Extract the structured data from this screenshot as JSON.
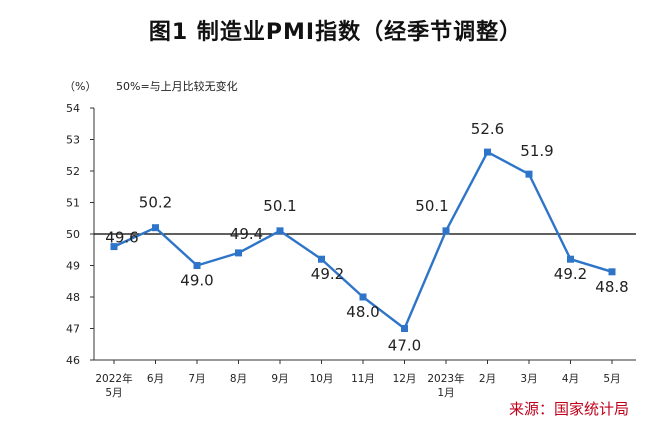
{
  "chart_data": {
    "type": "line",
    "title": "图1 制造业PMI指数（经季节调整）",
    "ylabel": "（%）",
    "reference_note": "50%=与上月比较无变化",
    "ylim": [
      46,
      54
    ],
    "yticks": [
      46,
      47,
      48,
      49,
      50,
      51,
      52,
      53,
      54
    ],
    "reference_line": 50,
    "categories": [
      [
        "2022年",
        "5月"
      ],
      [
        "6月"
      ],
      [
        "7月"
      ],
      [
        "8月"
      ],
      [
        "9月"
      ],
      [
        "10月"
      ],
      [
        "11月"
      ],
      [
        "12月"
      ],
      [
        "2023年",
        "1月"
      ],
      [
        "2月"
      ],
      [
        "3月"
      ],
      [
        "4月"
      ],
      [
        "5月"
      ]
    ],
    "series": [
      {
        "values": [
          49.6,
          50.2,
          49.0,
          49.4,
          50.1,
          49.2,
          48.0,
          47.0,
          50.1,
          52.6,
          51.9,
          49.2,
          48.8
        ],
        "labels": [
          "49.6",
          "50.2",
          "49.0",
          "49.4",
          "50.1",
          "49.2",
          "48.0",
          "47.0",
          "50.1",
          "52.6",
          "51.9",
          "49.2",
          "48.8"
        ]
      }
    ],
    "line_color": "#2e75c9",
    "grid": false,
    "legend": "none"
  },
  "source": "来源：国家统计局",
  "colors": {
    "source_text": "#c0001a",
    "axis": "#333333",
    "text": "#222222"
  }
}
